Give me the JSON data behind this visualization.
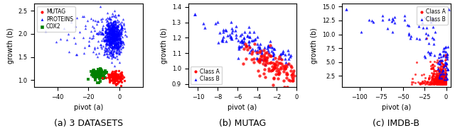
{
  "panel_a": {
    "caption": "(a) 3 DATASETS",
    "xlabel": "pivot (a)",
    "ylabel": "growth (b)",
    "xlim": [
      -55,
      15
    ],
    "ylim": [
      0.85,
      2.65
    ],
    "yticks": [
      1.0,
      1.25,
      1.5,
      1.75,
      2.0,
      2.25,
      2.5
    ],
    "legend": [
      "MUTAG",
      "PROTEINS",
      "COX2"
    ],
    "legend_colors": [
      "red",
      "blue",
      "green"
    ],
    "legend_markers": [
      "o",
      "^",
      "s"
    ]
  },
  "panel_b": {
    "caption": "(b) MUTAG",
    "xlabel": "pivot (a)",
    "ylabel": "growth (b)",
    "xlim": [
      -11,
      0
    ],
    "ylim": [
      0.88,
      1.42
    ],
    "legend": [
      "Class A",
      "Class B"
    ],
    "legend_colors": [
      "red",
      "blue"
    ],
    "legend_markers": [
      "o",
      "^"
    ]
  },
  "panel_c": {
    "caption": "(c) IMDB-B",
    "xlabel": "pivot (a)",
    "ylabel": "growth (b)",
    "xlim": [
      -120,
      5
    ],
    "ylim": [
      0.5,
      15.5
    ],
    "legend": [
      "Class A",
      "Class B"
    ],
    "legend_colors": [
      "red",
      "blue"
    ],
    "legend_markers": [
      "o",
      "^"
    ]
  },
  "figsize": [
    6.4,
    1.81
  ],
  "dpi": 100,
  "caption_fontsize": 9
}
